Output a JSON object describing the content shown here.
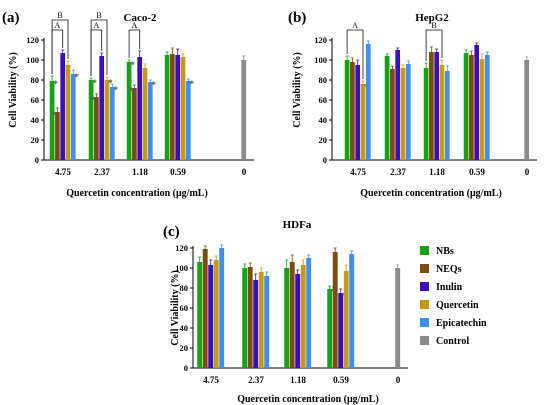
{
  "colors": {
    "nbs": "#15a315",
    "neqs": "#7a4d10",
    "inulin": "#3d0eb8",
    "quercetin": "#c49a16",
    "epicatechin": "#3f8ef0",
    "control": "#8a8a8a",
    "axis": "#000000",
    "bracket": "#111111"
  },
  "legend": {
    "entries": [
      {
        "key": "nbs",
        "label": "NBs"
      },
      {
        "key": "neqs",
        "label": "NEQs"
      },
      {
        "key": "inulin",
        "label": "Inulin"
      },
      {
        "key": "quercetin",
        "label": "Quercetin"
      },
      {
        "key": "epicatechin",
        "label": "Epicatechin"
      },
      {
        "key": "control",
        "label": "Control"
      }
    ]
  },
  "chart_data": [
    {
      "type": "bar",
      "panel": "(a)",
      "title": "Caco-2",
      "xlabel": "Quercetin concentration  (μg/mL)",
      "ylabel": "Cell Viability (%)",
      "ylim": [
        0,
        120
      ],
      "yticks": [
        0,
        20,
        40,
        60,
        80,
        100,
        120
      ],
      "categories": [
        "4.75",
        "2.37",
        "1.18",
        "0.59",
        "0"
      ],
      "series": [
        {
          "name": "NBs",
          "key": "nbs",
          "values": [
            79,
            80,
            98,
            105,
            null
          ],
          "errors": [
            5,
            2,
            2,
            3,
            null
          ],
          "stars": [
            true,
            true,
            true,
            false,
            false
          ]
        },
        {
          "name": "NEQs",
          "key": "neqs",
          "values": [
            48,
            63,
            72,
            106,
            null
          ],
          "errors": [
            4,
            3,
            3,
            6,
            null
          ],
          "stars": [
            true,
            true,
            true,
            false,
            false
          ]
        },
        {
          "name": "Inulin",
          "key": "inulin",
          "values": [
            107,
            104,
            103,
            105,
            null
          ],
          "errors": [
            3,
            3,
            6,
            6,
            null
          ],
          "stars": [
            false,
            false,
            false,
            false,
            false
          ]
        },
        {
          "name": "Quercetin",
          "key": "quercetin",
          "values": [
            95,
            80,
            92,
            103,
            null
          ],
          "errors": [
            4,
            3,
            4,
            3,
            null
          ],
          "stars": [
            false,
            true,
            false,
            false,
            false
          ]
        },
        {
          "name": "Epicatechin",
          "key": "epicatechin",
          "values": [
            86,
            73,
            78,
            79,
            null
          ],
          "errors": [
            4,
            3,
            2,
            2,
            null
          ],
          "stars": [
            true,
            true,
            true,
            true,
            false
          ]
        },
        {
          "name": "Control",
          "key": "control",
          "values": [
            null,
            null,
            null,
            null,
            100
          ],
          "errors": [
            null,
            null,
            null,
            null,
            4
          ],
          "stars": [
            false,
            false,
            false,
            false,
            false
          ]
        }
      ],
      "brackets": [
        {
          "label": "B",
          "category": 0,
          "from": 0,
          "to": 3,
          "level": 2
        },
        {
          "label": "A",
          "category": 0,
          "from": 0,
          "to": 2,
          "level": 1
        },
        {
          "label": "B",
          "category": 1,
          "from": 0,
          "to": 3,
          "level": 2
        },
        {
          "label": "A",
          "category": 1,
          "from": 0,
          "to": 2,
          "level": 1
        },
        {
          "label": "A",
          "category": 2,
          "from": 0,
          "to": 2,
          "level": 1
        }
      ]
    },
    {
      "type": "bar",
      "panel": "(b)",
      "title": "HepG2",
      "xlabel": "Quercetin concentration  (μg/mL)",
      "ylabel": "Cell Viability (%)",
      "ylim": [
        0,
        120
      ],
      "yticks": [
        0,
        20,
        40,
        60,
        80,
        100,
        120
      ],
      "categories": [
        "4.75",
        "2.37",
        "1.18",
        "0.59",
        "0"
      ],
      "series": [
        {
          "name": "NBs",
          "key": "nbs",
          "values": [
            100,
            104,
            92,
            107,
            null
          ],
          "errors": [
            4,
            2,
            5,
            3,
            null
          ],
          "stars": [
            false,
            false,
            false,
            false,
            false
          ]
        },
        {
          "name": "NEQs",
          "key": "neqs",
          "values": [
            98,
            91,
            108,
            105,
            null
          ],
          "errors": [
            4,
            3,
            5,
            4,
            null
          ],
          "stars": [
            false,
            false,
            false,
            false,
            false
          ]
        },
        {
          "name": "Inulin",
          "key": "inulin",
          "values": [
            95,
            110,
            108,
            115,
            null
          ],
          "errors": [
            5,
            2,
            3,
            2,
            null
          ],
          "stars": [
            false,
            false,
            false,
            false,
            false
          ]
        },
        {
          "name": "Quercetin",
          "key": "quercetin",
          "values": [
            76,
            92,
            95,
            101,
            null
          ],
          "errors": [
            3,
            3,
            5,
            5,
            null
          ],
          "stars": [
            true,
            false,
            false,
            false,
            false
          ]
        },
        {
          "name": "Epicatechin",
          "key": "epicatechin",
          "values": [
            116,
            96,
            89,
            105,
            null
          ],
          "errors": [
            3,
            3,
            5,
            3,
            null
          ],
          "stars": [
            false,
            false,
            false,
            false,
            false
          ]
        },
        {
          "name": "Control",
          "key": "control",
          "values": [
            null,
            null,
            null,
            null,
            100
          ],
          "errors": [
            null,
            null,
            null,
            null,
            3
          ],
          "stars": [
            false,
            false,
            false,
            false,
            false
          ]
        }
      ],
      "brackets": [
        {
          "label": "A",
          "category": 0,
          "from": 0,
          "to": 3,
          "level": 1
        },
        {
          "label": "B",
          "category": 2,
          "from": 0,
          "to": 3,
          "level": 1
        }
      ]
    },
    {
      "type": "bar",
      "panel": "(c)",
      "title": "HDFa",
      "xlabel": "Quercetin concentration  (μg/mL)",
      "ylabel": "Cell Viability (%)",
      "ylim": [
        0,
        120
      ],
      "yticks": [
        0,
        20,
        40,
        60,
        80,
        100,
        120
      ],
      "categories": [
        "4.75",
        "2.37",
        "1.18",
        "0.59",
        "0"
      ],
      "series": [
        {
          "name": "NBs",
          "key": "nbs",
          "values": [
            106,
            100,
            100,
            79,
            null
          ],
          "errors": [
            5,
            4,
            8,
            3,
            null
          ],
          "stars": [
            false,
            false,
            false,
            true,
            false
          ]
        },
        {
          "name": "NEQs",
          "key": "neqs",
          "values": [
            119,
            101,
            106,
            116,
            null
          ],
          "errors": [
            3,
            4,
            7,
            4,
            null
          ],
          "stars": [
            false,
            false,
            false,
            false,
            false
          ]
        },
        {
          "name": "Inulin",
          "key": "inulin",
          "values": [
            103,
            88,
            94,
            75,
            null
          ],
          "errors": [
            5,
            6,
            4,
            4,
            null
          ],
          "stars": [
            false,
            false,
            false,
            true,
            false
          ]
        },
        {
          "name": "Quercetin",
          "key": "quercetin",
          "values": [
            108,
            96,
            103,
            97,
            null
          ],
          "errors": [
            4,
            4,
            5,
            6,
            null
          ],
          "stars": [
            false,
            false,
            false,
            false,
            false
          ]
        },
        {
          "name": "Epicatechin",
          "key": "epicatechin",
          "values": [
            120,
            92,
            110,
            114,
            null
          ],
          "errors": [
            3,
            4,
            3,
            3,
            null
          ],
          "stars": [
            false,
            false,
            false,
            false,
            false
          ]
        },
        {
          "name": "Control",
          "key": "control",
          "values": [
            null,
            null,
            null,
            null,
            100
          ],
          "errors": [
            null,
            null,
            null,
            null,
            3
          ],
          "stars": [
            false,
            false,
            false,
            false,
            false
          ]
        }
      ],
      "brackets": []
    }
  ]
}
